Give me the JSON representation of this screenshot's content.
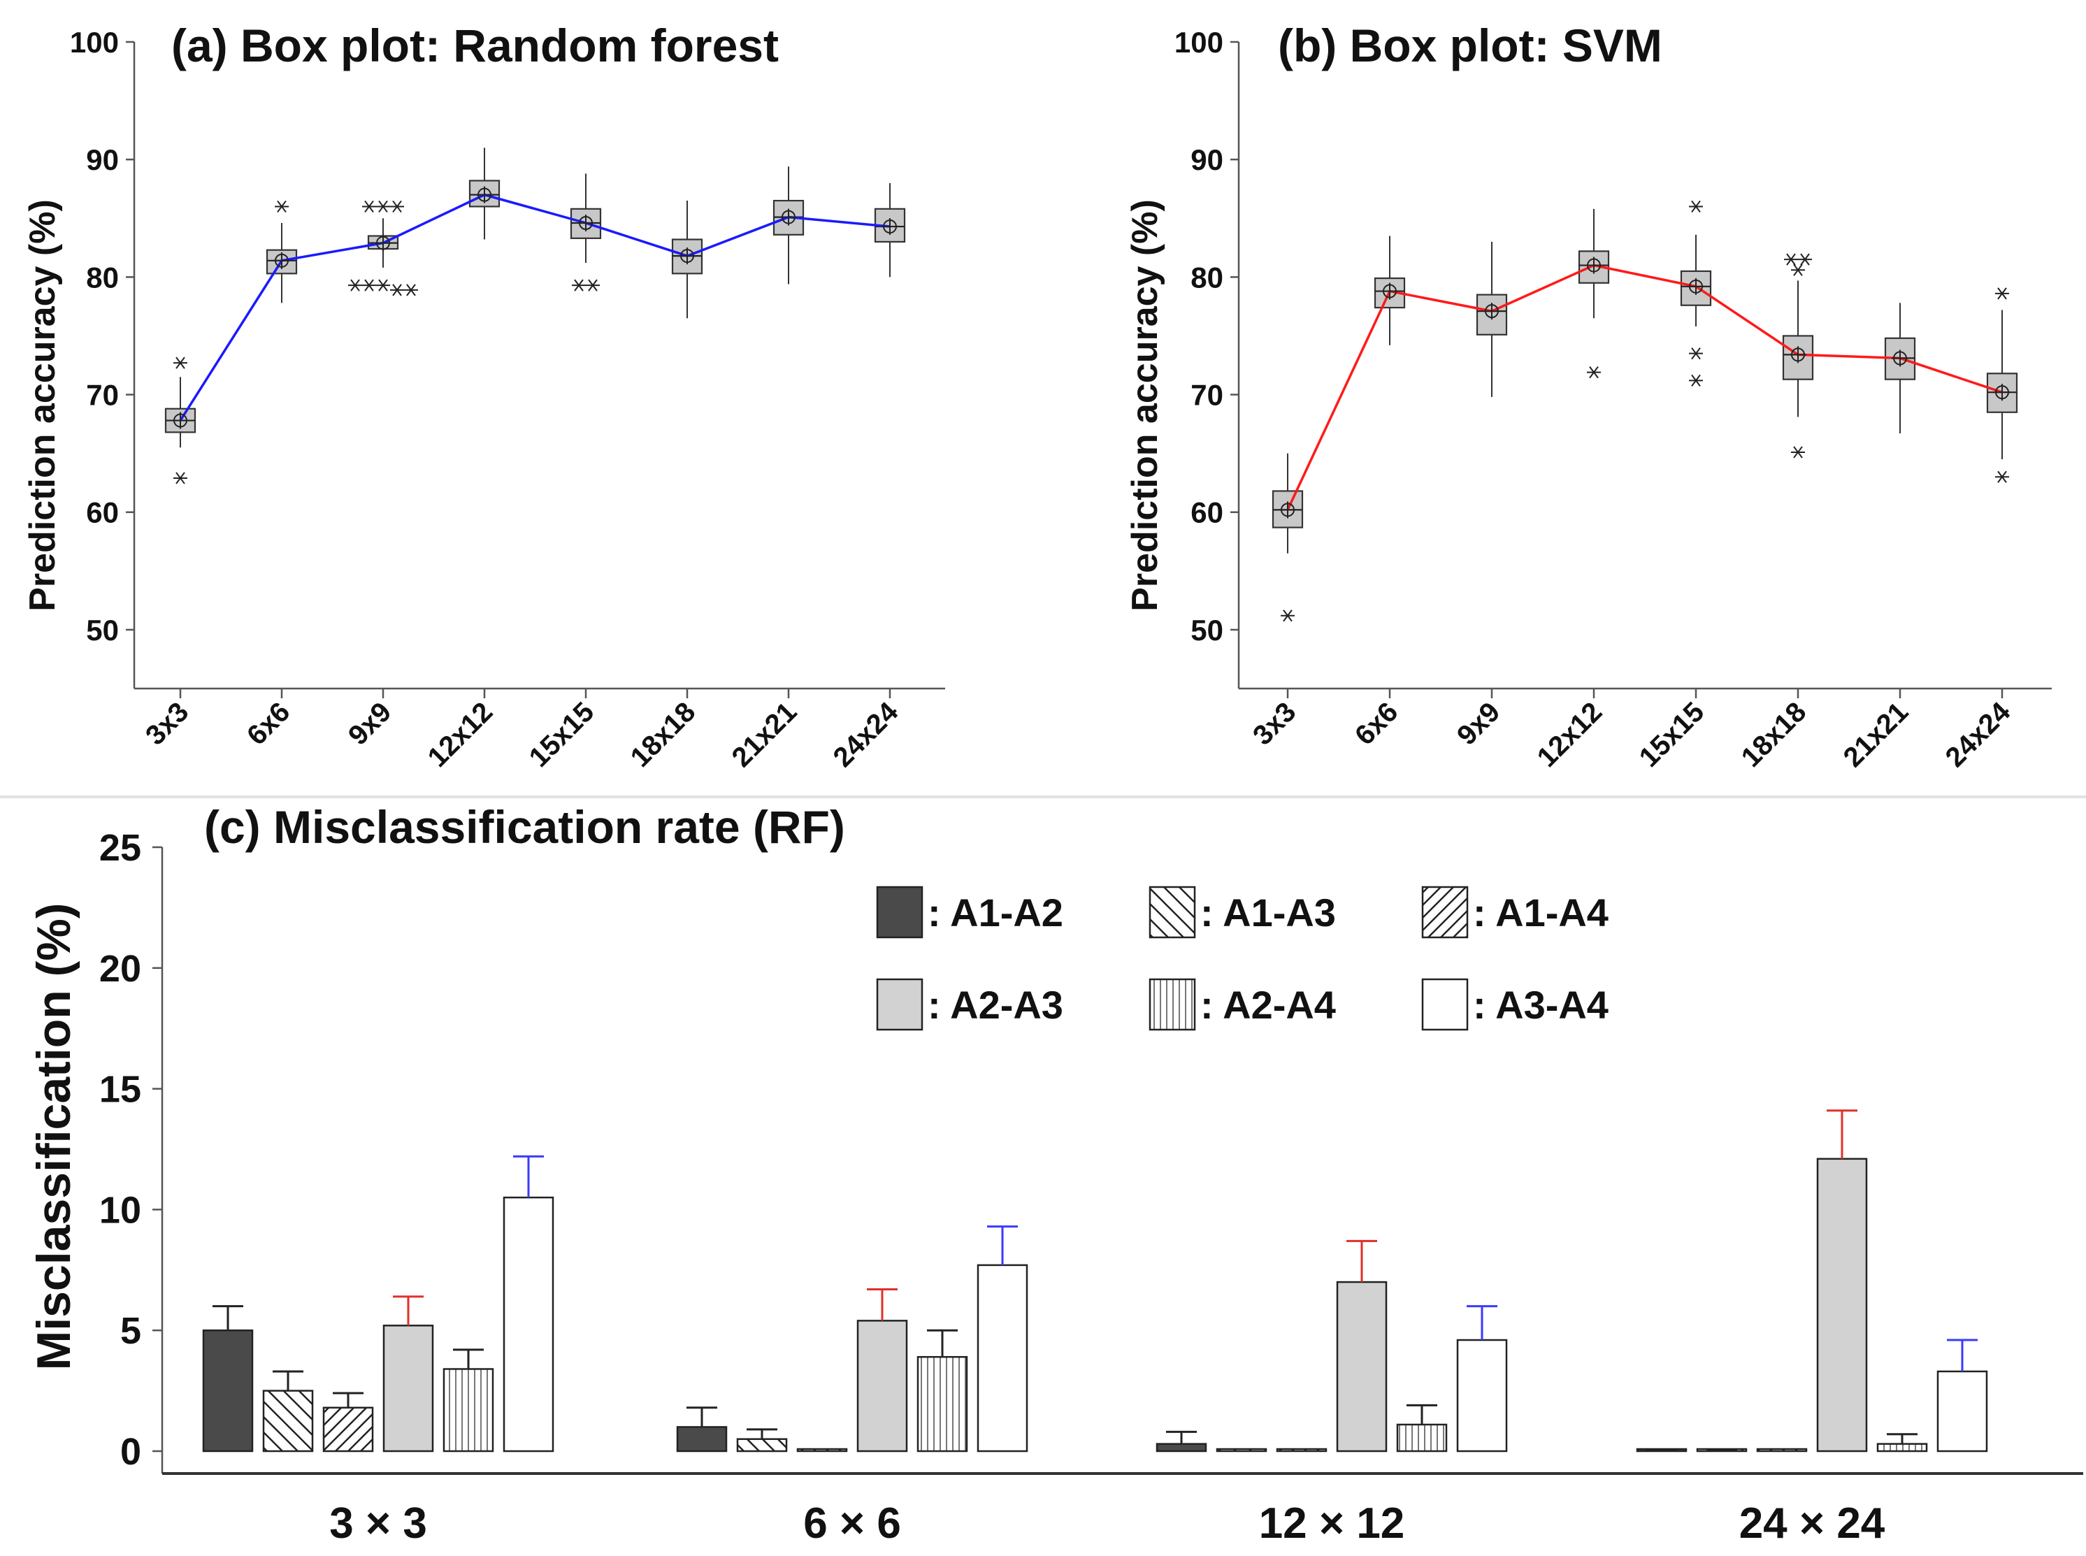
{
  "colors": {
    "rf_line": "#1a1aff",
    "svm_line": "#ff1a1a",
    "box_fill": "#c8c8c8",
    "bar_dark": "#4a4a4a",
    "bar_gray": "#d2d2d2",
    "err_red": "#e0302a",
    "err_blue": "#3a3aff",
    "err_black": "#222222"
  },
  "chart_data": [
    {
      "type": "box",
      "title": "(a) Box plot: Random forest",
      "xlabel": "",
      "ylabel": "Prediction accuracy (%)",
      "ylim": [
        45,
        100
      ],
      "yticks": [
        50,
        60,
        70,
        80,
        90,
        100
      ],
      "categories": [
        "3x3",
        "6x6",
        "9x9",
        "12x12",
        "15x15",
        "18x18",
        "21x21",
        "24x24"
      ],
      "boxes": [
        {
          "median": 67.8,
          "q1": 66.8,
          "q3": 68.8,
          "whislo": 65.5,
          "whishi": 71.5,
          "mean": 67.8,
          "outliers": [
            72.7,
            62.9
          ]
        },
        {
          "median": 81.4,
          "q1": 80.3,
          "q3": 82.3,
          "whislo": 77.8,
          "whishi": 84.6,
          "mean": 81.4,
          "outliers": [
            86.0
          ]
        },
        {
          "median": 82.9,
          "q1": 82.4,
          "q3": 83.5,
          "whislo": 80.8,
          "whishi": 85.0,
          "mean": 82.9,
          "outliers": [
            86.0,
            86.0,
            86.0,
            79.3,
            79.3,
            79.3,
            78.9,
            78.9
          ]
        },
        {
          "median": 87.0,
          "q1": 86.0,
          "q3": 88.2,
          "whislo": 83.2,
          "whishi": 91.0,
          "mean": 87.0,
          "outliers": []
        },
        {
          "median": 84.6,
          "q1": 83.3,
          "q3": 85.8,
          "whislo": 81.2,
          "whishi": 88.8,
          "mean": 84.6,
          "outliers": [
            79.3,
            79.3
          ]
        },
        {
          "median": 81.8,
          "q1": 80.3,
          "q3": 83.2,
          "whislo": 76.5,
          "whishi": 86.5,
          "mean": 81.8,
          "outliers": []
        },
        {
          "median": 85.1,
          "q1": 83.6,
          "q3": 86.5,
          "whislo": 79.4,
          "whishi": 89.4,
          "mean": 85.1,
          "outliers": []
        },
        {
          "median": 84.3,
          "q1": 83.0,
          "q3": 85.8,
          "whislo": 80.0,
          "whishi": 88.0,
          "mean": 84.3,
          "outliers": []
        }
      ]
    },
    {
      "type": "box",
      "title": "(b) Box plot: SVM",
      "xlabel": "",
      "ylabel": "Prediction accuracy (%)",
      "ylim": [
        45,
        100
      ],
      "yticks": [
        50,
        60,
        70,
        80,
        90,
        100
      ],
      "categories": [
        "3x3",
        "6x6",
        "9x9",
        "12x12",
        "15x15",
        "18x18",
        "21x21",
        "24x24"
      ],
      "boxes": [
        {
          "median": 60.2,
          "q1": 58.7,
          "q3": 61.8,
          "whislo": 56.5,
          "whishi": 65.0,
          "mean": 60.2,
          "outliers": [
            51.2
          ]
        },
        {
          "median": 78.8,
          "q1": 77.4,
          "q3": 79.9,
          "whislo": 74.2,
          "whishi": 83.5,
          "mean": 78.8,
          "outliers": []
        },
        {
          "median": 77.1,
          "q1": 75.1,
          "q3": 78.5,
          "whislo": 69.8,
          "whishi": 83.0,
          "mean": 77.1,
          "outliers": []
        },
        {
          "median": 81.0,
          "q1": 79.5,
          "q3": 82.2,
          "whislo": 76.5,
          "whishi": 85.8,
          "mean": 81.0,
          "outliers": [
            71.9
          ]
        },
        {
          "median": 79.2,
          "q1": 77.6,
          "q3": 80.5,
          "whislo": 75.8,
          "whishi": 83.6,
          "mean": 79.2,
          "outliers": [
            86.0,
            73.5,
            71.2
          ]
        },
        {
          "median": 73.4,
          "q1": 71.3,
          "q3": 75.0,
          "whislo": 68.1,
          "whishi": 79.7,
          "mean": 73.4,
          "outliers": [
            81.5,
            81.5,
            80.6,
            65.1
          ]
        },
        {
          "median": 73.1,
          "q1": 71.3,
          "q3": 74.8,
          "whislo": 66.7,
          "whishi": 77.8,
          "mean": 73.1,
          "outliers": []
        },
        {
          "median": 70.2,
          "q1": 68.5,
          "q3": 71.8,
          "whislo": 64.5,
          "whishi": 77.2,
          "mean": 70.2,
          "outliers": [
            78.6,
            63.0
          ]
        }
      ]
    },
    {
      "type": "bar",
      "title": "(c) Misclassification rate (RF)",
      "xlabel": "",
      "ylabel": "Misclassification (%)",
      "ylim": [
        0,
        25
      ],
      "yticks": [
        0,
        5,
        10,
        15,
        20,
        25
      ],
      "categories": [
        "3 × 3",
        "6 × 6",
        "12 × 12",
        "24 × 24"
      ],
      "series": [
        {
          "name": "A1-A2",
          "values": [
            5.0,
            1.0,
            0.3,
            0.0
          ],
          "errors": [
            1.0,
            0.8,
            0.5,
            0.05
          ],
          "pattern": "dark",
          "err_color": "black"
        },
        {
          "name": "A1-A3",
          "values": [
            2.5,
            0.5,
            0.0,
            0.0
          ],
          "errors": [
            0.8,
            0.4,
            0.0,
            0.05
          ],
          "pattern": "backslash",
          "err_color": "black"
        },
        {
          "name": "A1-A4",
          "values": [
            1.8,
            0.05,
            0.0,
            0.0
          ],
          "errors": [
            0.6,
            0.0,
            0.0,
            0.0
          ],
          "pattern": "slash",
          "err_color": "black"
        },
        {
          "name": "A2-A3",
          "values": [
            5.2,
            5.4,
            7.0,
            12.1
          ],
          "errors": [
            1.2,
            1.3,
            1.7,
            2.0
          ],
          "pattern": "gray",
          "err_color": "red"
        },
        {
          "name": "A2-A4",
          "values": [
            3.4,
            3.9,
            1.1,
            0.3
          ],
          "errors": [
            0.8,
            1.1,
            0.8,
            0.4
          ],
          "pattern": "vertical",
          "err_color": "black"
        },
        {
          "name": "A3-A4",
          "values": [
            10.5,
            7.7,
            4.6,
            3.3
          ],
          "errors": [
            1.7,
            1.6,
            1.4,
            1.3
          ],
          "pattern": "white",
          "err_color": "blue"
        }
      ],
      "legend": [
        "A1-A2",
        "A1-A3",
        "A1-A4",
        "A2-A3",
        "A2-A4",
        "A3-A4"
      ],
      "legend_prefix": ":"
    }
  ]
}
